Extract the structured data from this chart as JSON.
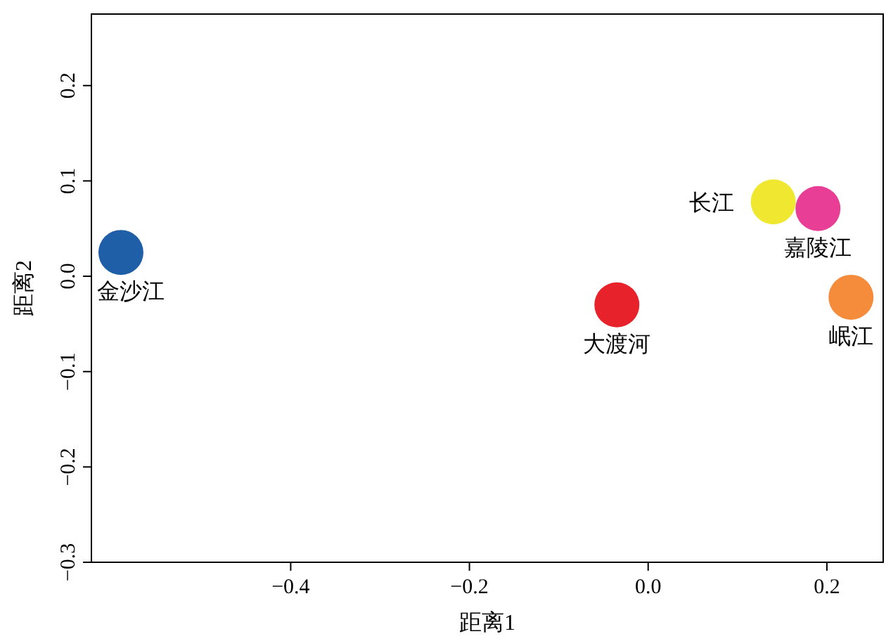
{
  "chart_data": {
    "type": "scatter",
    "xlabel": "距离1",
    "ylabel": "距离2",
    "legend": false,
    "grid": false,
    "marker": "circle",
    "xlim": [
      -0.623,
      0.263
    ],
    "ylim": [
      -0.3,
      0.275
    ],
    "xticks": [
      {
        "value": -0.4,
        "label": "−0.4"
      },
      {
        "value": -0.2,
        "label": "−0.2"
      },
      {
        "value": 0,
        "label": "0.0"
      },
      {
        "value": 0.2,
        "label": "0.2"
      }
    ],
    "yticks": [
      {
        "value": -0.3,
        "label": "−0.3"
      },
      {
        "value": -0.2,
        "label": "−0.2"
      },
      {
        "value": -0.1,
        "label": "−0.1"
      },
      {
        "value": 0,
        "label": "0.0"
      },
      {
        "value": 0.1,
        "label": "0.1"
      },
      {
        "value": 0.2,
        "label": "0.2"
      }
    ],
    "series": [
      {
        "name": "金沙江",
        "color": "#1f5fa8",
        "x": [
          -0.59
        ],
        "values": [
          0.025
        ]
      },
      {
        "name": "大渡河",
        "color": "#e8222a",
        "x": [
          -0.035
        ],
        "values": [
          -0.03
        ]
      },
      {
        "name": "长江",
        "color": "#f0e830",
        "x": [
          0.14
        ],
        "values": [
          0.078
        ]
      },
      {
        "name": "嘉陵江",
        "color": "#e83e96",
        "x": [
          0.19
        ],
        "values": [
          0.071
        ]
      },
      {
        "name": "岷江",
        "color": "#f58c3c",
        "x": [
          0.227
        ],
        "values": [
          -0.022
        ]
      }
    ]
  }
}
